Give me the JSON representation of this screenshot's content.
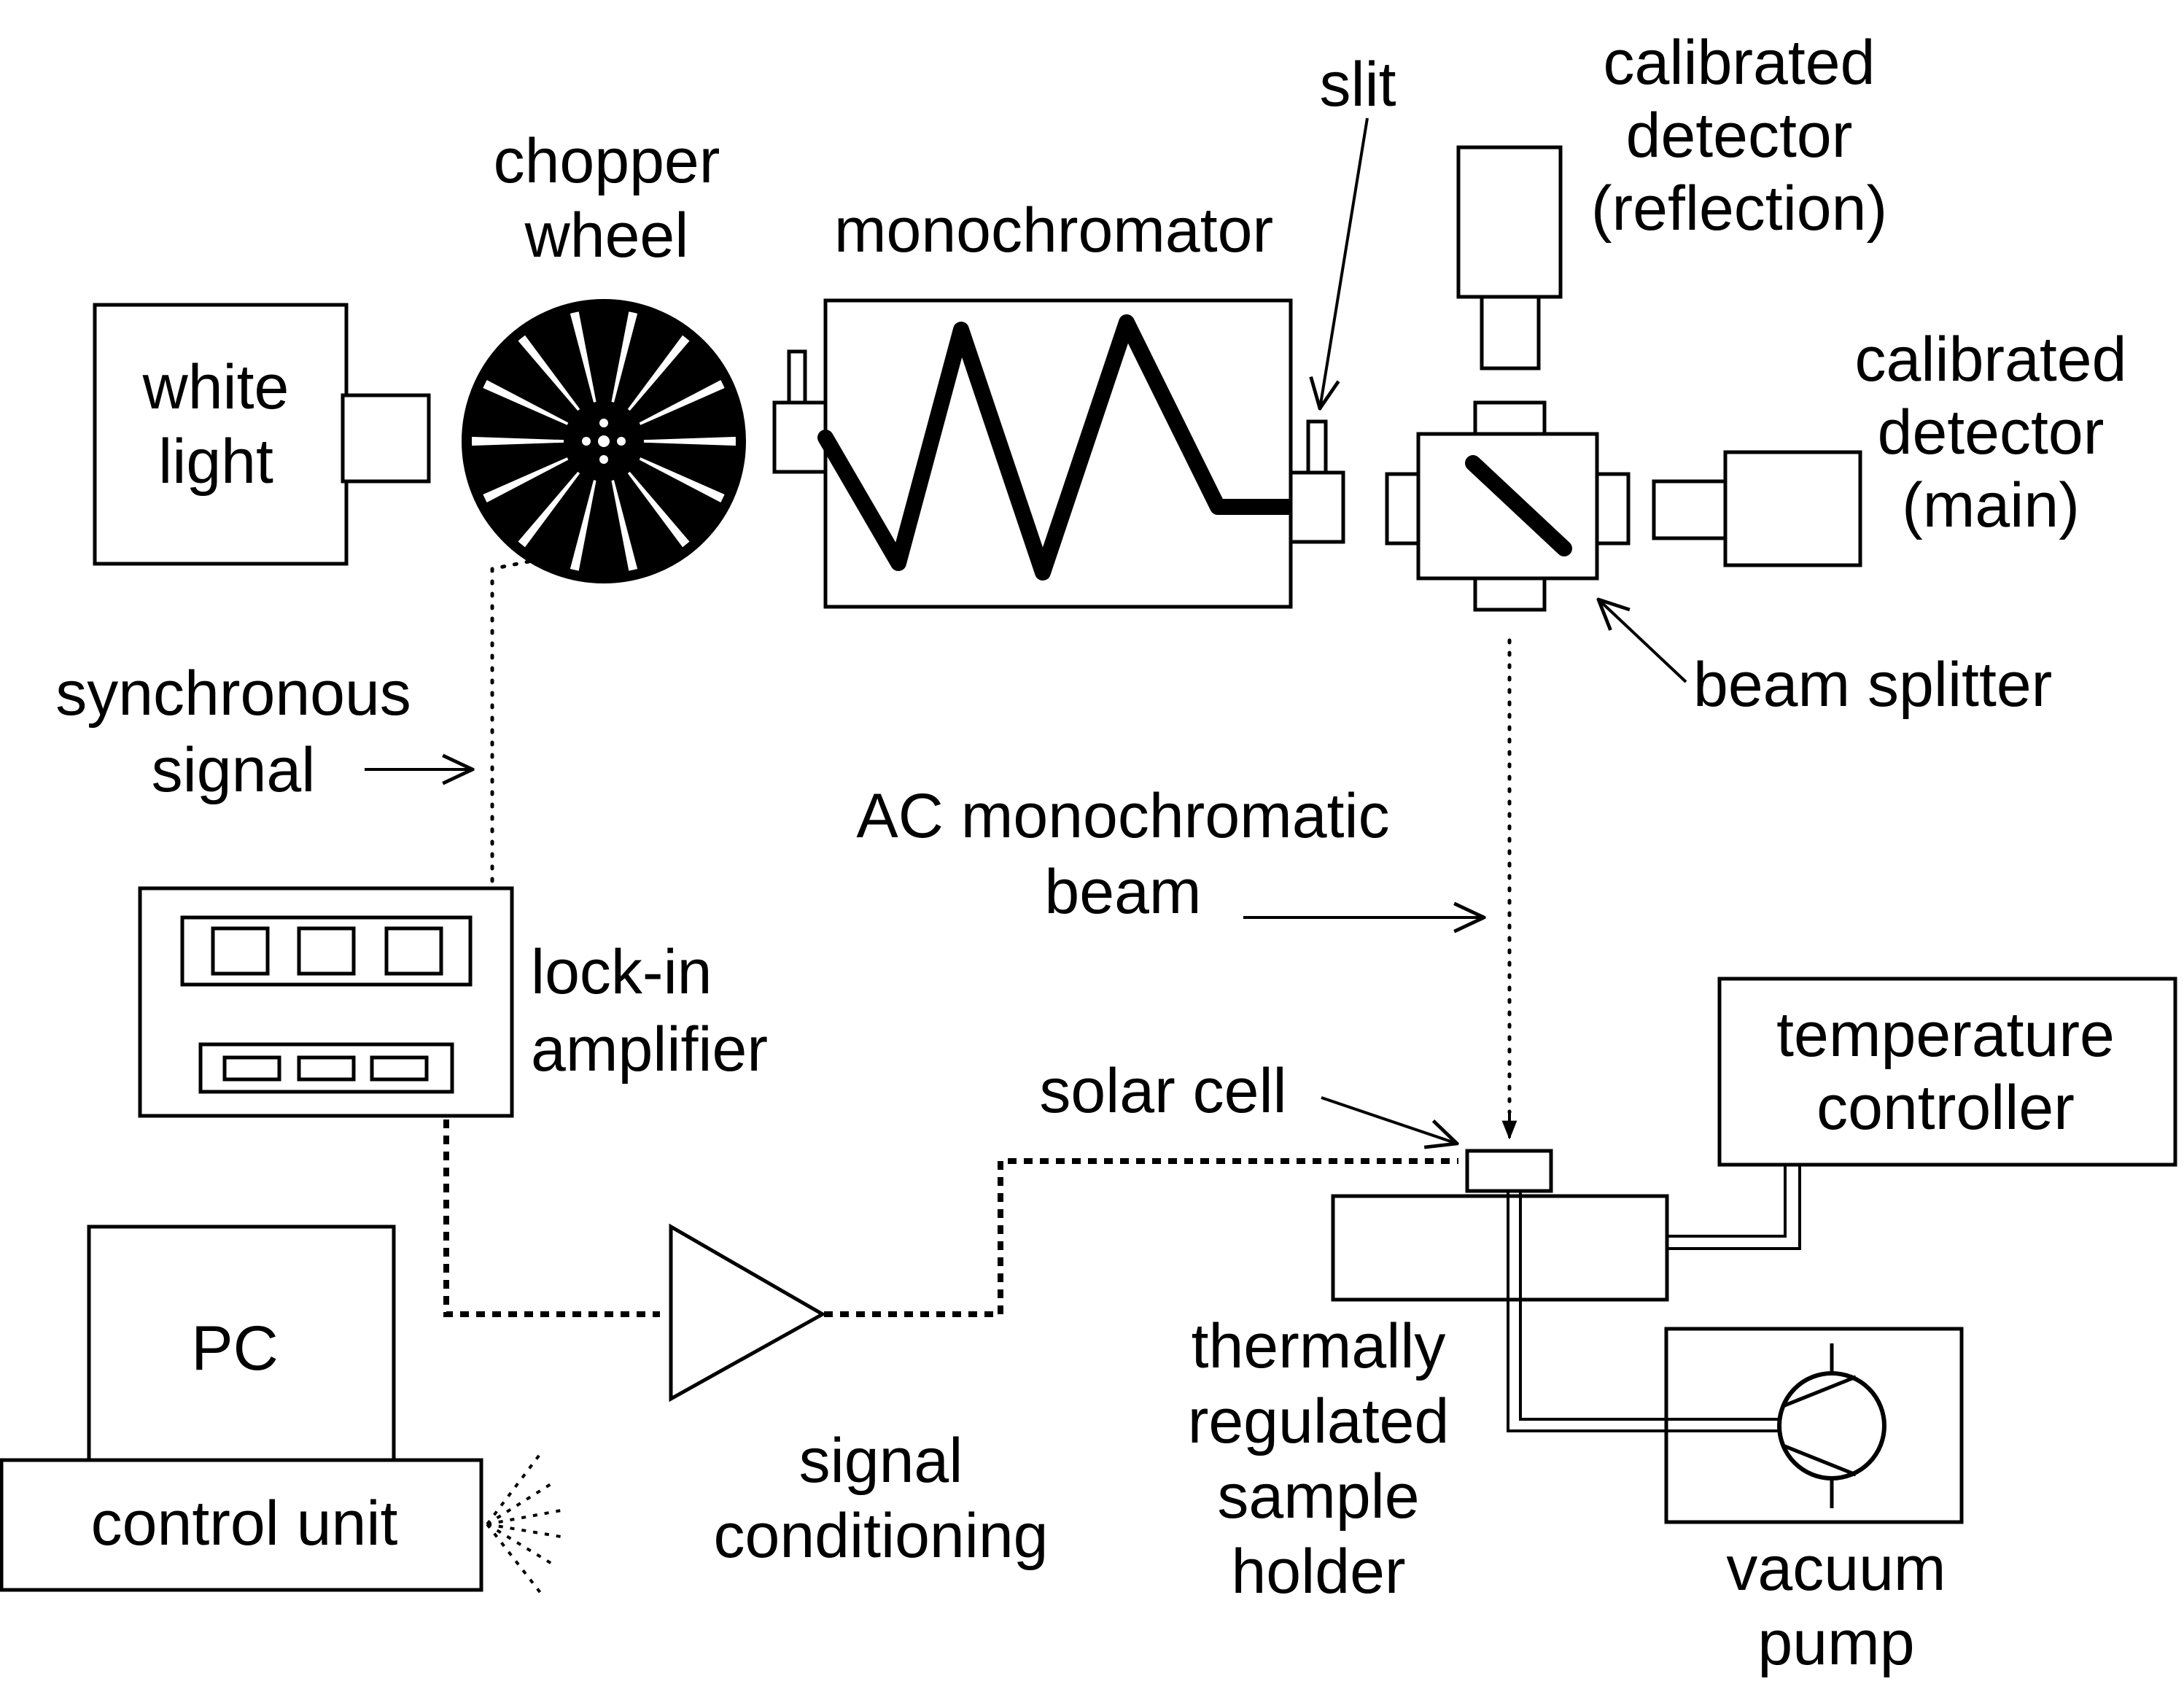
{
  "labels": {
    "white_light": [
      "white",
      "light"
    ],
    "chopper_wheel": [
      "chopper",
      "wheel"
    ],
    "monochromator": "monochromator",
    "slit": "slit",
    "calibrated_detector_reflection": [
      "calibrated",
      "detector",
      "(reflection)"
    ],
    "calibrated_detector_main": [
      "calibrated",
      "detector",
      "(main)"
    ],
    "beam_splitter": "beam splitter",
    "synchronous_signal": [
      "synchronous",
      "signal"
    ],
    "ac_monochromatic_beam": [
      "AC monochromatic",
      "beam"
    ],
    "lock_in_amplifier": [
      "lock-in",
      "amplifier"
    ],
    "solar_cell": "solar cell",
    "temperature_controller": [
      "temperature",
      "controller"
    ],
    "pc": "PC",
    "control_unit": "control unit",
    "signal_conditioning": [
      "signal",
      "conditioning"
    ],
    "sample_holder": [
      "thermally",
      "regulated",
      "sample",
      "holder"
    ],
    "vacuum_pump": [
      "vacuum",
      "pump"
    ]
  }
}
